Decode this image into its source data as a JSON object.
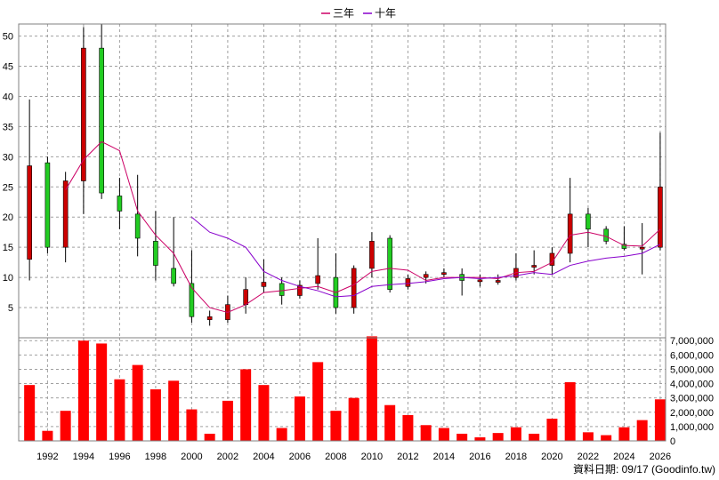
{
  "legend": [
    {
      "label": "三年",
      "color": "#cc0066"
    },
    {
      "label": "十年",
      "color": "#8800cc"
    }
  ],
  "footer": {
    "source": "資料日期: 09/17 (Goodinfo.tw)"
  },
  "colors": {
    "up": "#cc0000",
    "down": "#22cc22",
    "volume": "#ff0000",
    "wick": "#000000"
  },
  "chart_data": [
    {
      "type": "candlestick",
      "x_tick_labels": [
        "1992",
        "1994",
        "1996",
        "1998",
        "2000",
        "2002",
        "2004",
        "2006",
        "2008",
        "2010",
        "2012",
        "2014",
        "2016",
        "2018",
        "2020",
        "2022",
        "2024",
        "2026"
      ],
      "y_tick_labels": [
        "5",
        "10",
        "15",
        "20",
        "25",
        "30",
        "35",
        "40",
        "45",
        "50"
      ],
      "ylim": [
        0,
        52
      ],
      "xlim": [
        1990.4,
        2026.3
      ],
      "grid": true,
      "legend_position": "top-center",
      "candles": [
        {
          "year": 1991,
          "open": 13,
          "close": 28.5,
          "high": 39.5,
          "low": 9.5
        },
        {
          "year": 1992,
          "open": 29,
          "close": 15,
          "high": 30,
          "low": 14
        },
        {
          "year": 1993,
          "open": 15,
          "close": 26,
          "high": 27.5,
          "low": 12.5
        },
        {
          "year": 1994,
          "open": 26,
          "close": 48,
          "high": 51.5,
          "low": 20.5
        },
        {
          "year": 1995,
          "open": 48,
          "close": 24,
          "high": 52,
          "low": 23
        },
        {
          "year": 1996,
          "open": 23.5,
          "close": 21,
          "high": 26.5,
          "low": 18
        },
        {
          "year": 1997,
          "open": 20.5,
          "close": 16.5,
          "high": 27,
          "low": 13.5
        },
        {
          "year": 1998,
          "open": 16,
          "close": 12,
          "high": 21,
          "low": 9.5
        },
        {
          "year": 1999,
          "open": 11.5,
          "close": 9,
          "high": 20,
          "low": 8.5
        },
        {
          "year": 2000,
          "open": 9,
          "close": 3.5,
          "high": 14.5,
          "low": 2.5
        },
        {
          "year": 2001,
          "open": 3,
          "close": 3.5,
          "high": 4.5,
          "low": 2
        },
        {
          "year": 2002,
          "open": 3,
          "close": 5.5,
          "high": 7,
          "low": 2.5
        },
        {
          "year": 2003,
          "open": 5.5,
          "close": 8,
          "high": 10,
          "low": 4
        },
        {
          "year": 2004,
          "open": 8.5,
          "close": 9.2,
          "high": 13,
          "low": 7.5
        },
        {
          "year": 2005,
          "open": 9,
          "close": 7,
          "high": 10,
          "low": 5.5
        },
        {
          "year": 2006,
          "open": 7,
          "close": 8.7,
          "high": 9.5,
          "low": 6.5
        },
        {
          "year": 2007,
          "open": 9,
          "close": 10.3,
          "high": 16.5,
          "low": 8
        },
        {
          "year": 2008,
          "open": 10,
          "close": 5,
          "high": 14,
          "low": 4
        },
        {
          "year": 2009,
          "open": 5,
          "close": 11.5,
          "high": 12,
          "low": 4
        },
        {
          "year": 2010,
          "open": 11.5,
          "close": 16,
          "high": 17.5,
          "low": 10
        },
        {
          "year": 2011,
          "open": 16.5,
          "close": 8,
          "high": 17,
          "low": 7.5
        },
        {
          "year": 2012,
          "open": 8.5,
          "close": 9.8,
          "high": 10.5,
          "low": 8
        },
        {
          "year": 2013,
          "open": 10,
          "close": 10.5,
          "high": 11,
          "low": 9
        },
        {
          "year": 2014,
          "open": 10.5,
          "close": 10.8,
          "high": 11.5,
          "low": 10
        },
        {
          "year": 2015,
          "open": 10.5,
          "close": 9.5,
          "high": 11.5,
          "low": 7
        },
        {
          "year": 2016,
          "open": 9.3,
          "close": 9.6,
          "high": 10.5,
          "low": 8.5
        },
        {
          "year": 2017,
          "open": 9.2,
          "close": 9.5,
          "high": 10.5,
          "low": 8.8
        },
        {
          "year": 2018,
          "open": 10,
          "close": 11.5,
          "high": 14,
          "low": 9.5
        },
        {
          "year": 2019,
          "open": 11.7,
          "close": 12,
          "high": 14.5,
          "low": 10.5
        },
        {
          "year": 2020,
          "open": 12,
          "close": 14,
          "high": 15,
          "low": 10.5
        },
        {
          "year": 2021,
          "open": 14,
          "close": 20.5,
          "high": 26.5,
          "low": 12.5
        },
        {
          "year": 2022,
          "open": 20.5,
          "close": 18,
          "high": 21.5,
          "low": 15
        },
        {
          "year": 2023,
          "open": 18,
          "close": 16,
          "high": 18.5,
          "low": 15.5
        },
        {
          "year": 2024,
          "open": 15.5,
          "close": 14.8,
          "high": 18.5,
          "low": 14.5
        },
        {
          "year": 2025,
          "open": 14.7,
          "close": 15,
          "high": 19,
          "low": 10.5
        },
        {
          "year": 2026,
          "open": 15,
          "close": 25,
          "high": 34,
          "low": 14.5
        }
      ],
      "series": [
        {
          "name": "三年",
          "color": "#cc0066",
          "x": [
            1993,
            1994,
            1995,
            1996,
            1997,
            1998,
            1999,
            2000,
            2001,
            2002,
            2003,
            2004,
            2005,
            2006,
            2007,
            2008,
            2009,
            2010,
            2011,
            2012,
            2013,
            2014,
            2015,
            2016,
            2017,
            2018,
            2019,
            2020,
            2021,
            2022,
            2023,
            2024,
            2025,
            2026
          ],
          "y": [
            24.5,
            29.5,
            32.5,
            31,
            21,
            17,
            14,
            8.3,
            5,
            4.2,
            5.5,
            7.5,
            7.8,
            8.2,
            8.5,
            7.5,
            8.8,
            11,
            11.5,
            11.2,
            9.5,
            10,
            10,
            10,
            9.8,
            10.8,
            11,
            12.5,
            17,
            17.5,
            16.8,
            15.3,
            15.2,
            18
          ]
        },
        {
          "name": "十年",
          "color": "#8800cc",
          "x": [
            2000,
            2001,
            2002,
            2003,
            2004,
            2005,
            2006,
            2007,
            2008,
            2009,
            2010,
            2011,
            2012,
            2013,
            2014,
            2015,
            2016,
            2017,
            2018,
            2019,
            2020,
            2021,
            2022,
            2023,
            2024,
            2025,
            2026
          ],
          "y": [
            20,
            17.5,
            16.5,
            15,
            11,
            9.5,
            8.5,
            7.8,
            6.8,
            7,
            8.5,
            8.8,
            9,
            9.3,
            9.8,
            10,
            9.8,
            10,
            10.3,
            10.8,
            10.5,
            12,
            12.7,
            13.2,
            13.5,
            14,
            15.5
          ]
        }
      ]
    },
    {
      "type": "bar",
      "title": "",
      "ylim": [
        0,
        7200000
      ],
      "y_tick_labels": [
        "0",
        "1,000,000",
        "2,000,000",
        "3,000,000",
        "4,000,000",
        "5,000,000",
        "6,000,000",
        "7,000,000"
      ],
      "x": [
        1991,
        1992,
        1993,
        1994,
        1995,
        1996,
        1997,
        1998,
        1999,
        2000,
        2001,
        2002,
        2003,
        2004,
        2005,
        2006,
        2007,
        2008,
        2009,
        2010,
        2011,
        2012,
        2013,
        2014,
        2015,
        2016,
        2017,
        2018,
        2019,
        2020,
        2021,
        2022,
        2023,
        2024,
        2025,
        2026
      ],
      "values": [
        3900000,
        700000,
        2100000,
        7000000,
        6800000,
        4300000,
        5300000,
        3600000,
        4200000,
        2200000,
        500000,
        2800000,
        5000000,
        3900000,
        900000,
        3100000,
        5500000,
        2100000,
        3000000,
        7300000,
        2500000,
        1800000,
        1100000,
        900000,
        500000,
        250000,
        550000,
        950000,
        500000,
        1550000,
        4100000,
        600000,
        400000,
        950000,
        1450000,
        2900000
      ]
    }
  ]
}
